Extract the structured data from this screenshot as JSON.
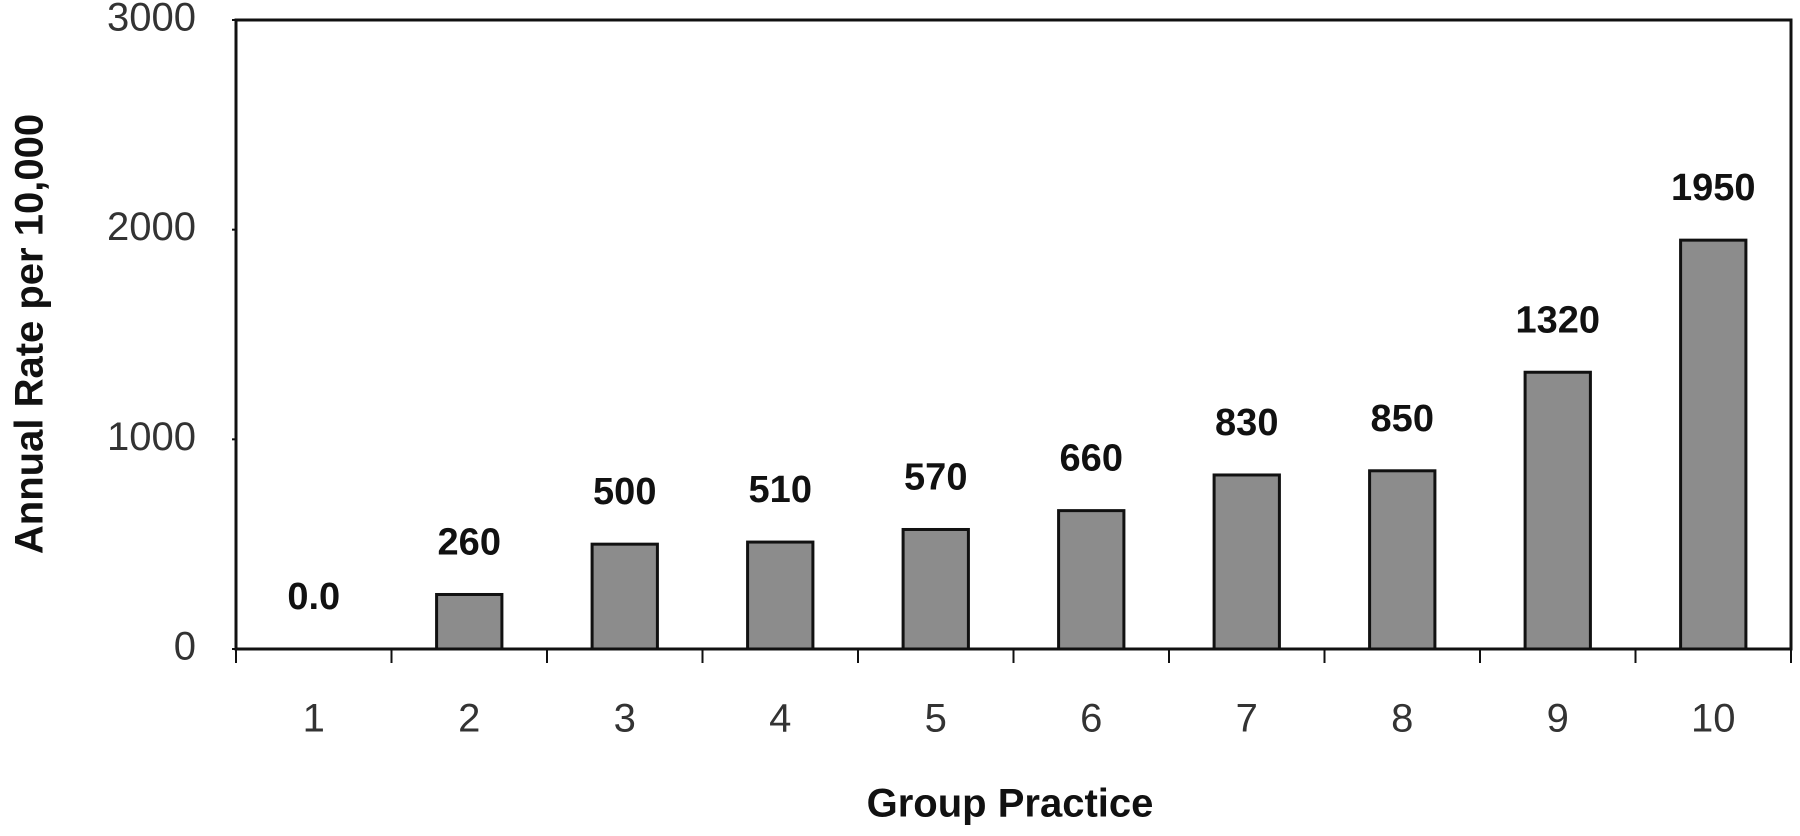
{
  "chart_data": {
    "type": "bar",
    "x_label": "Group Practice",
    "y_label": "Annual Rate per 10,000",
    "categories": [
      "1",
      "2",
      "3",
      "4",
      "5",
      "6",
      "7",
      "8",
      "9",
      "10"
    ],
    "values": [
      0,
      260,
      500,
      510,
      570,
      660,
      830,
      850,
      1320,
      1950
    ],
    "value_labels": [
      "0.0",
      "260",
      "500",
      "510",
      "570",
      "660",
      "830",
      "850",
      "1320",
      "1950"
    ],
    "color": "#8c8c8c",
    "ylim": [
      0,
      3000
    ],
    "yticks": [
      0,
      1000,
      2000,
      3000
    ],
    "grid": false
  }
}
